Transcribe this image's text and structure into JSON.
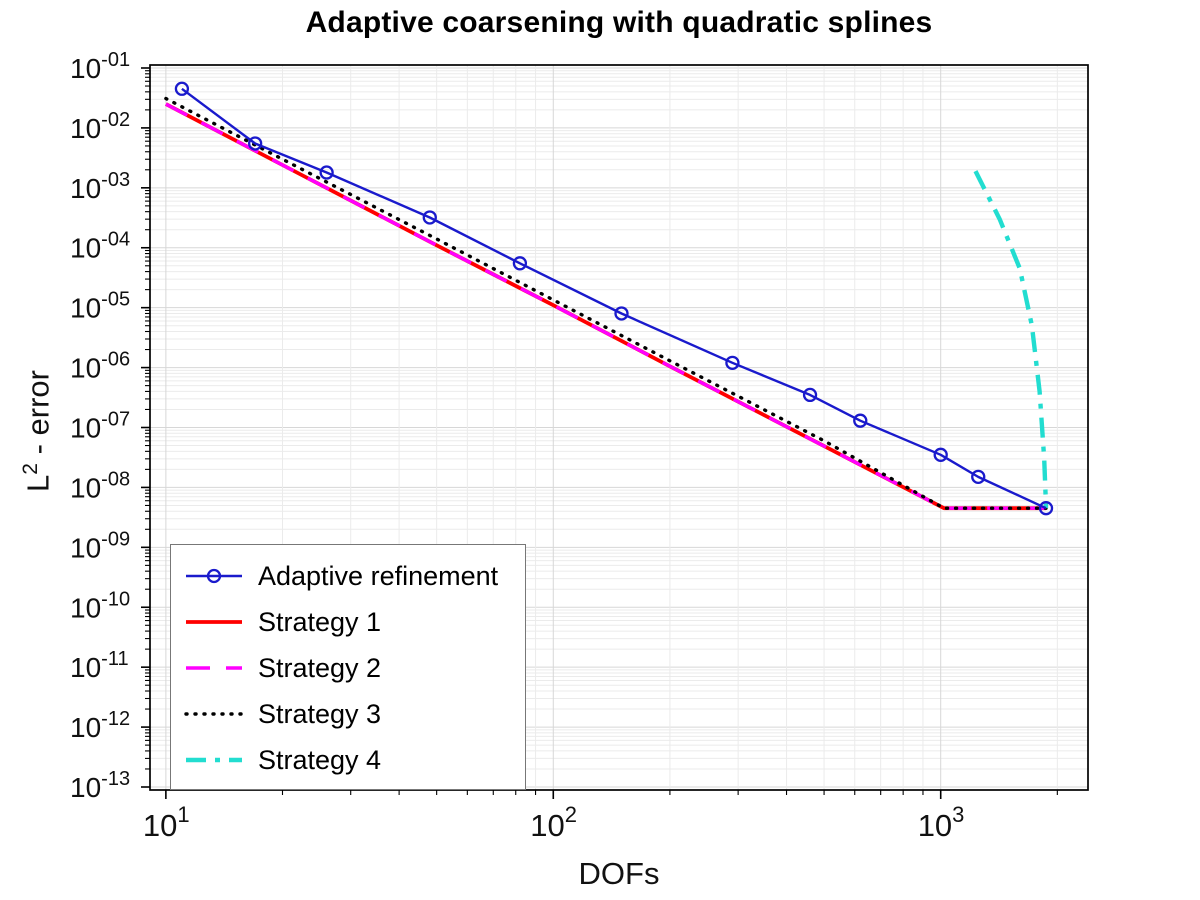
{
  "chart_data": {
    "type": "line",
    "title": "Adaptive coarsening with quadratic splines",
    "xlabel": "DOFs",
    "ylabel": "L^2 - error",
    "ylabel_parts": {
      "base": "L",
      "sup": "2",
      "rest": " - error"
    },
    "x_scale": "log",
    "y_scale": "log",
    "xlim": [
      9.1,
      2400
    ],
    "ylim_exp": [
      -13.05,
      -0.95
    ],
    "x_ticks_exp": [
      1,
      2,
      3
    ],
    "x_tick_labels": [
      "1",
      "2",
      "3"
    ],
    "y_ticks_exp": [
      -1,
      -2,
      -3,
      -4,
      -5,
      -6,
      -7,
      -8,
      -9,
      -10,
      -11,
      -12,
      -13
    ],
    "y_tick_labels": [
      "-01",
      "-02",
      "-03",
      "-04",
      "-05",
      "-06",
      "-07",
      "-08",
      "-09",
      "-10",
      "-11",
      "-12",
      "-13"
    ],
    "tick_base": "10",
    "grid": {
      "major": "#d7d7d7",
      "minor": "#ebebeb",
      "on": true
    },
    "axis_color": "#000000",
    "legend_position": "lower-left",
    "series": [
      {
        "name": "Adaptive refinement",
        "color": "#1a1acc",
        "width": 2.4,
        "dash": null,
        "cap": null,
        "marker": "circle",
        "z": 5,
        "x": [
          11,
          17,
          26,
          48,
          82,
          150,
          290,
          460,
          620,
          1000,
          1250,
          1870
        ],
        "y": [
          0.045,
          0.0055,
          0.0018,
          0.00032,
          5.5e-05,
          8e-06,
          1.2e-06,
          3.5e-07,
          1.3e-07,
          3.5e-08,
          1.5e-08,
          4.5e-09
        ]
      },
      {
        "name": "Strategy 1",
        "color": "#ff0000",
        "width": 3.8,
        "dash": null,
        "cap": null,
        "marker": null,
        "z": 1,
        "x": [
          10,
          20,
          50,
          100,
          200,
          500,
          1020,
          1870
        ],
        "y": [
          0.025,
          0.0024,
          0.00011,
          1.1e-05,
          1.05e-06,
          4.9e-08,
          4.5e-09,
          4.5e-09
        ]
      },
      {
        "name": "Strategy 2",
        "color": "#ff00ff",
        "width": 3.4,
        "dash": "24 16",
        "cap": null,
        "marker": null,
        "z": 2,
        "x": [
          10,
          20,
          50,
          100,
          200,
          500,
          1020,
          1870
        ],
        "y": [
          0.025,
          0.0024,
          0.00011,
          1.1e-05,
          1.05e-06,
          4.9e-08,
          4.5e-09,
          4.5e-09
        ]
      },
      {
        "name": "Strategy 3",
        "color": "#000000",
        "width": 3.4,
        "dash": "1 8",
        "cap": "round",
        "marker": null,
        "z": 3,
        "x": [
          10,
          20,
          50,
          100,
          200,
          500,
          1020,
          1870
        ],
        "y": [
          0.031,
          0.003,
          0.00014,
          1.35e-05,
          1.3e-06,
          6e-08,
          4.5e-09,
          4.5e-09
        ]
      },
      {
        "name": "Strategy 4",
        "color": "#22ddd0",
        "width": 4.4,
        "dash": "20 9 5 9",
        "cap": null,
        "marker": null,
        "z": 4,
        "x": [
          1230,
          1420,
          1600,
          1720,
          1800,
          1850,
          1868,
          1870
        ],
        "y": [
          0.0019,
          0.0003,
          4.5e-05,
          5e-06,
          4e-07,
          3e-08,
          6e-09,
          4.5e-09
        ]
      }
    ]
  }
}
